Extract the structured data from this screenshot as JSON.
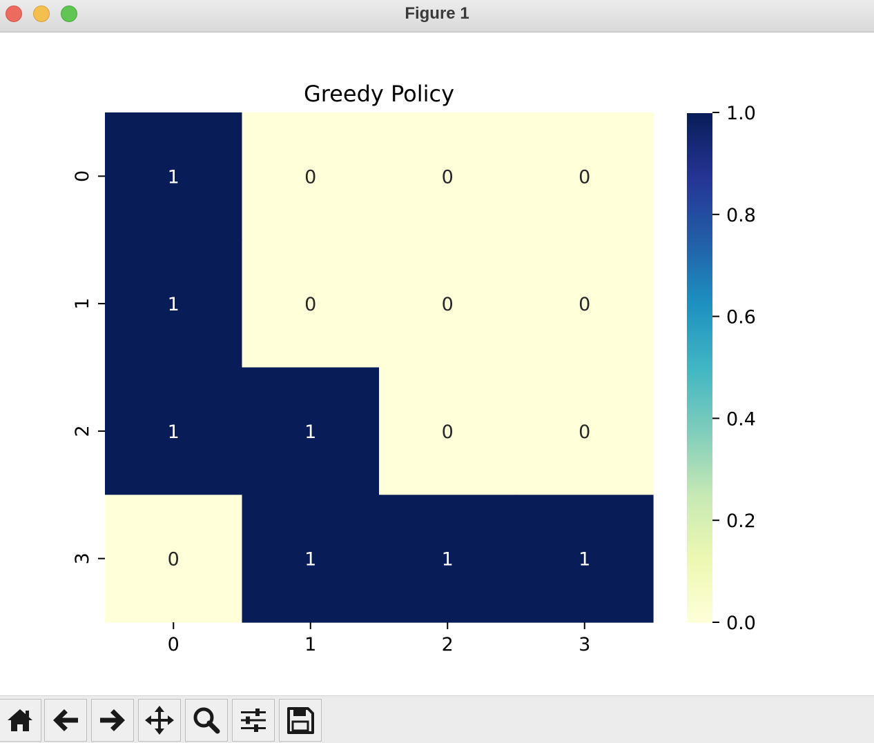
{
  "window": {
    "title": "Figure 1"
  },
  "toolbar": {
    "buttons": [
      {
        "icon": "home-icon"
      },
      {
        "icon": "back-arrow-icon"
      },
      {
        "icon": "forward-arrow-icon"
      },
      {
        "icon": "pan-icon"
      },
      {
        "icon": "zoom-icon"
      },
      {
        "icon": "configure-subplots-icon"
      },
      {
        "icon": "save-icon"
      }
    ]
  },
  "chart_data": {
    "type": "heatmap",
    "title": "Greedy Policy",
    "xlabel": "",
    "ylabel": "",
    "x_tick_labels": [
      "0",
      "1",
      "2",
      "3"
    ],
    "y_tick_labels": [
      "0",
      "1",
      "2",
      "3"
    ],
    "values": [
      [
        1,
        0,
        0,
        0
      ],
      [
        1,
        0,
        0,
        0
      ],
      [
        1,
        1,
        0,
        0
      ],
      [
        0,
        1,
        1,
        1
      ]
    ],
    "annotations": true,
    "colormap": "YlGnBu",
    "colorbar": {
      "vmin": 0.0,
      "vmax": 1.0,
      "tick_labels": [
        "0.0",
        "0.2",
        "0.4",
        "0.6",
        "0.8",
        "1.0"
      ]
    },
    "colors": {
      "low": "#ffffd9",
      "high": "#081d58",
      "annotation_on_dark": "#ffffff",
      "annotation_on_light": "#262626"
    }
  }
}
